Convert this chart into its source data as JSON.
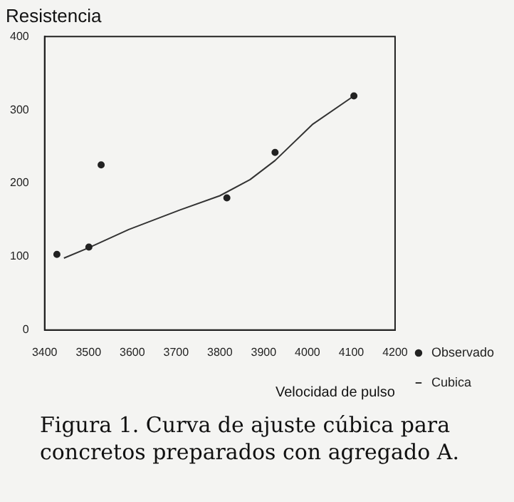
{
  "chart_data": {
    "type": "scatter",
    "ylabel": "Resistencia",
    "xlabel": "Velocidad de pulso",
    "annotations": [
      "Figura 1. Curva de ajuste cúbica para concretos preparados con agregado A."
    ],
    "xlim": [
      3400,
      4200
    ],
    "xticks": [
      3400,
      3500,
      3600,
      3700,
      3800,
      3900,
      4000,
      4100,
      4200
    ],
    "ylim": [
      0,
      400
    ],
    "yticks": [
      0,
      100,
      200,
      300,
      400
    ],
    "grid": false,
    "legend": "bottom right",
    "series": [
      {
        "name": "Observado",
        "marker": "circle",
        "color": "#222222",
        "x": [
          3428,
          3501,
          3529,
          3816,
          3926,
          4106
        ],
        "values": [
          103,
          113,
          225,
          180,
          242,
          319
        ]
      },
      {
        "name": "Cubica",
        "type": "line",
        "marker": "none",
        "line_style": "solid",
        "color": "#333333",
        "x": [
          3444,
          3500,
          3592,
          3706,
          3800,
          3869,
          3926,
          4011,
          4106
        ],
        "values": [
          98,
          112,
          137,
          163,
          183,
          205,
          231,
          280,
          319
        ]
      }
    ]
  }
}
